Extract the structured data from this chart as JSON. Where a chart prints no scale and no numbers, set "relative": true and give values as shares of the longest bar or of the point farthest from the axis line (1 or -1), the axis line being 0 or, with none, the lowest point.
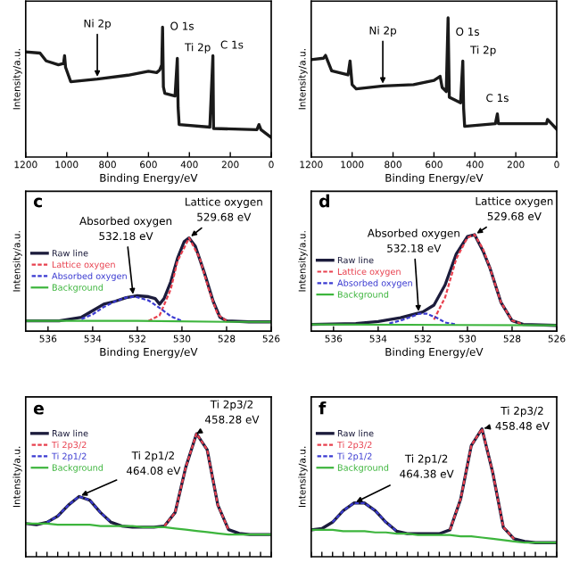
{
  "chart_data": [
    {
      "type": "line",
      "relative": true,
      "xlabel": "Binding Energy/eV",
      "ylabel": "Intensity/a.u.",
      "xlim": [
        1200,
        0
      ],
      "xticks": [
        1200,
        1000,
        800,
        600,
        400,
        200,
        0
      ],
      "tick_labels": "x",
      "grid": false,
      "legend": false,
      "series": [
        {
          "color": "#1a1a1a",
          "x": [
            1200,
            1130,
            1100,
            1040,
            1015,
            1010,
            1005,
            980,
            850,
            700,
            600,
            560,
            545,
            535,
            531,
            527,
            520,
            470,
            459,
            455,
            450,
            300,
            285,
            282,
            70,
            60,
            50,
            0
          ],
          "values": [
            0.81,
            0.8,
            0.74,
            0.71,
            0.72,
            0.78,
            0.69,
            0.58,
            0.6,
            0.63,
            0.66,
            0.65,
            0.67,
            0.71,
            1.0,
            0.54,
            0.49,
            0.47,
            0.76,
            0.38,
            0.25,
            0.23,
            0.78,
            0.22,
            0.21,
            0.25,
            0.21,
            0.15
          ]
        }
      ],
      "annotations": [
        {
          "text": "Ni 2p",
          "x": 850,
          "y": 0.6
        },
        {
          "text": "O 1s",
          "x": 531,
          "y": 1.0
        },
        {
          "text": "Ti 2p",
          "x": 459,
          "y": 0.76
        },
        {
          "text": "C 1s",
          "x": 285,
          "y": 0.78
        }
      ]
    },
    {
      "type": "line",
      "relative": true,
      "xlabel": "Binding Energy/eV",
      "ylabel": "Intensity/a.u.",
      "xlim": [
        1200,
        0
      ],
      "xticks": [
        1200,
        1000,
        800,
        600,
        400,
        200,
        0
      ],
      "tick_labels": "x",
      "grid": false,
      "legend": false,
      "series": [
        {
          "color": "#1a1a1a",
          "x": [
            1200,
            1140,
            1130,
            1100,
            1020,
            1010,
            1000,
            980,
            850,
            700,
            600,
            570,
            560,
            540,
            531,
            525,
            470,
            459,
            455,
            450,
            300,
            290,
            285,
            50,
            45,
            0
          ],
          "values": [
            0.7,
            0.71,
            0.73,
            0.62,
            0.59,
            0.69,
            0.52,
            0.49,
            0.51,
            0.52,
            0.55,
            0.58,
            0.5,
            0.47,
            1.0,
            0.43,
            0.39,
            0.69,
            0.35,
            0.22,
            0.24,
            0.31,
            0.24,
            0.24,
            0.27,
            0.2
          ]
        }
      ],
      "annotations": [
        {
          "text": "Ni 2p",
          "x": 850,
          "y": 0.51
        },
        {
          "text": "O 1s",
          "x": 531,
          "y": 1.0
        },
        {
          "text": "Ti 2p",
          "x": 459,
          "y": 0.69
        },
        {
          "text": "C 1s",
          "x": 290,
          "y": 0.31
        }
      ]
    },
    {
      "type": "line",
      "relative": true,
      "xlabel": "Binding Energy/eV",
      "ylabel": "Intensity/a.u.",
      "xlim": [
        537,
        526
      ],
      "xticks": [
        536,
        534,
        532,
        530,
        528,
        526
      ],
      "tick_labels": "x",
      "grid": false,
      "legend": "left",
      "series": [
        {
          "name": "Raw line",
          "color": "#1c1c3c",
          "line_style": "solid",
          "x": [
            537,
            535.5,
            534.5,
            534,
            533.5,
            533,
            532.5,
            532,
            531.5,
            531.2,
            531,
            530.8,
            530.5,
            530.2,
            529.9,
            529.68,
            529.4,
            529,
            528.6,
            528.3,
            528,
            527,
            526
          ],
          "values": [
            0.11,
            0.11,
            0.15,
            0.22,
            0.29,
            0.32,
            0.36,
            0.38,
            0.37,
            0.35,
            0.29,
            0.35,
            0.53,
            0.78,
            0.96,
            1.0,
            0.91,
            0.63,
            0.32,
            0.15,
            0.11,
            0.1,
            0.1
          ]
        },
        {
          "name": "Lattice oxygen",
          "color": "#e8414f",
          "line_style": "dashed",
          "x": [
            531.5,
            531,
            530.5,
            530.2,
            529.68,
            529.2,
            528.8,
            528.4,
            528
          ],
          "values": [
            0.11,
            0.17,
            0.45,
            0.75,
            1.0,
            0.78,
            0.45,
            0.18,
            0.11
          ]
        },
        {
          "name": "Absorbed oxygen",
          "color": "#3b3bd1",
          "line_style": "dashed",
          "x": [
            534.5,
            534,
            533.5,
            533,
            532.5,
            532.1,
            531.5,
            531,
            530.5,
            530
          ],
          "values": [
            0.13,
            0.18,
            0.26,
            0.32,
            0.36,
            0.37,
            0.33,
            0.25,
            0.16,
            0.11
          ]
        },
        {
          "name": "Background",
          "color": "#3db53d",
          "line_style": "solid",
          "x": [
            537,
            532,
            528,
            526
          ],
          "values": [
            0.11,
            0.11,
            0.1,
            0.1
          ]
        }
      ],
      "annotations": [
        "c",
        {
          "text": "Lattice oxygen\n529.68 eV",
          "x": 529.68,
          "y": 1.0
        },
        {
          "text": "Absorbed oxygen\n532.18 eV",
          "x": 532.18,
          "y": 0.37
        }
      ]
    },
    {
      "type": "line",
      "relative": true,
      "xlabel": "Binding Energy/eV",
      "ylabel": "Intensity/a.u.",
      "xlim": [
        537,
        526
      ],
      "xticks": [
        536,
        534,
        532,
        530,
        528,
        526
      ],
      "tick_labels": "x",
      "grid": false,
      "legend": "left",
      "series": [
        {
          "name": "Raw line",
          "color": "#1c1c3c",
          "line_style": "solid",
          "x": [
            537,
            535,
            534,
            533,
            532.5,
            532,
            531.5,
            531,
            530.5,
            530,
            529.68,
            529.3,
            529,
            528.5,
            528,
            527.5,
            526
          ],
          "values": [
            0.07,
            0.08,
            0.1,
            0.14,
            0.17,
            0.2,
            0.27,
            0.48,
            0.8,
            0.98,
            1.0,
            0.83,
            0.66,
            0.3,
            0.11,
            0.07,
            0.06
          ]
        },
        {
          "name": "Lattice oxygen",
          "color": "#e8414f",
          "line_style": "dashed",
          "x": [
            531.5,
            531,
            530.5,
            530,
            529.68,
            529.3,
            529,
            528.5,
            528,
            527.5
          ],
          "values": [
            0.12,
            0.35,
            0.75,
            0.97,
            1.0,
            0.85,
            0.66,
            0.3,
            0.11,
            0.07
          ]
        },
        {
          "name": "Absorbed oxygen",
          "color": "#3b3bd1",
          "line_style": "dashed",
          "x": [
            533.5,
            533,
            532.5,
            532.18,
            531.8,
            531.3,
            531,
            530.5
          ],
          "values": [
            0.08,
            0.11,
            0.15,
            0.18,
            0.18,
            0.13,
            0.09,
            0.07
          ]
        },
        {
          "name": "Background",
          "color": "#3db53d",
          "line_style": "solid",
          "x": [
            537,
            526
          ],
          "values": [
            0.07,
            0.06
          ]
        }
      ],
      "annotations": [
        "d",
        {
          "text": "Lattice oxygen\n529.68 eV",
          "x": 529.68,
          "y": 1.0
        },
        {
          "text": "Absorbed oxygen\n532.18 eV",
          "x": 532.18,
          "y": 0.18
        }
      ]
    },
    {
      "type": "line",
      "relative": true,
      "ylabel": "Intensity/a.u.",
      "categories": [
        null,
        null,
        null,
        null,
        null,
        null,
        null,
        null,
        null,
        null,
        null,
        null,
        null,
        null,
        null,
        null,
        null,
        null,
        null,
        null,
        null,
        null,
        null,
        null
      ],
      "tick_labels": false,
      "grid": false,
      "legend": "left",
      "series": [
        {
          "name": "Raw line",
          "color": "#1c1c3c",
          "line_style": "solid",
          "values": [
            0.27,
            0.26,
            0.28,
            0.33,
            0.42,
            0.49,
            0.46,
            0.36,
            0.28,
            0.25,
            0.24,
            0.24,
            0.24,
            0.25,
            0.36,
            0.73,
            1.0,
            0.87,
            0.42,
            0.22,
            0.19,
            0.18,
            0.18,
            0.18
          ]
        },
        {
          "name": "Ti 2p3/2",
          "color": "#e8414f",
          "line_style": "dashed",
          "values": [
            null,
            null,
            null,
            null,
            null,
            null,
            null,
            null,
            null,
            null,
            null,
            null,
            null,
            0.25,
            0.36,
            0.73,
            1.0,
            0.87,
            0.42,
            0.22,
            null,
            null,
            null,
            null
          ]
        },
        {
          "name": "Ti 2p1/2",
          "color": "#3b3bd1",
          "line_style": "dashed",
          "values": [
            null,
            null,
            0.28,
            0.33,
            0.42,
            0.49,
            0.46,
            0.36,
            0.28,
            null,
            null,
            null,
            null,
            null,
            null,
            null,
            null,
            null,
            null,
            null,
            null,
            null,
            null,
            null
          ]
        },
        {
          "name": "Background",
          "color": "#3db53d",
          "line_style": "solid",
          "values": [
            0.27,
            0.27,
            0.27,
            0.26,
            0.26,
            0.26,
            0.26,
            0.25,
            0.25,
            0.25,
            0.25,
            0.24,
            0.24,
            0.24,
            0.23,
            0.22,
            0.21,
            0.2,
            0.19,
            0.18,
            0.18,
            0.18,
            0.18,
            0.18
          ]
        }
      ],
      "annotations": [
        "e",
        "Ti 2p3/2\n458.28 eV",
        "Ti 2p1/2\n464.08 eV"
      ]
    },
    {
      "type": "line",
      "relative": true,
      "ylabel": "Intensity/a.u.",
      "categories": [
        null,
        null,
        null,
        null,
        null,
        null,
        null,
        null,
        null,
        null,
        null,
        null,
        null,
        null,
        null,
        null,
        null,
        null,
        null,
        null,
        null,
        null,
        null,
        null
      ],
      "tick_labels": false,
      "grid": false,
      "legend": "left",
      "series": [
        {
          "name": "Raw line",
          "color": "#1c1c3c",
          "line_style": "solid",
          "values": [
            0.21,
            0.22,
            0.27,
            0.36,
            0.42,
            0.42,
            0.36,
            0.27,
            0.2,
            0.18,
            0.18,
            0.18,
            0.18,
            0.21,
            0.45,
            0.87,
            1.0,
            0.66,
            0.23,
            0.14,
            0.12,
            0.11,
            0.11,
            0.11
          ]
        },
        {
          "name": "Ti 2p3/2",
          "color": "#e8414f",
          "line_style": "dashed",
          "values": [
            null,
            null,
            null,
            null,
            null,
            null,
            null,
            null,
            null,
            null,
            null,
            null,
            null,
            0.21,
            0.45,
            0.87,
            1.0,
            0.66,
            0.23,
            0.14,
            null,
            null,
            null,
            null
          ]
        },
        {
          "name": "Ti 2p1/2",
          "color": "#3b3bd1",
          "line_style": "dashed",
          "values": [
            null,
            null,
            0.27,
            0.36,
            0.42,
            0.42,
            0.36,
            0.27,
            0.2,
            null,
            null,
            null,
            null,
            null,
            null,
            null,
            null,
            null,
            null,
            null,
            null,
            null,
            null,
            null
          ]
        },
        {
          "name": "Background",
          "color": "#3db53d",
          "line_style": "solid",
          "values": [
            0.21,
            0.21,
            0.21,
            0.2,
            0.2,
            0.2,
            0.19,
            0.19,
            0.18,
            0.18,
            0.17,
            0.17,
            0.17,
            0.17,
            0.16,
            0.16,
            0.15,
            0.14,
            0.13,
            0.12,
            0.11,
            0.11,
            0.11,
            0.11
          ]
        }
      ],
      "annotations": [
        "f",
        "Ti 2p3/2\n458.48 eV",
        "Ti 2p1/2\n464.38 eV"
      ]
    }
  ]
}
